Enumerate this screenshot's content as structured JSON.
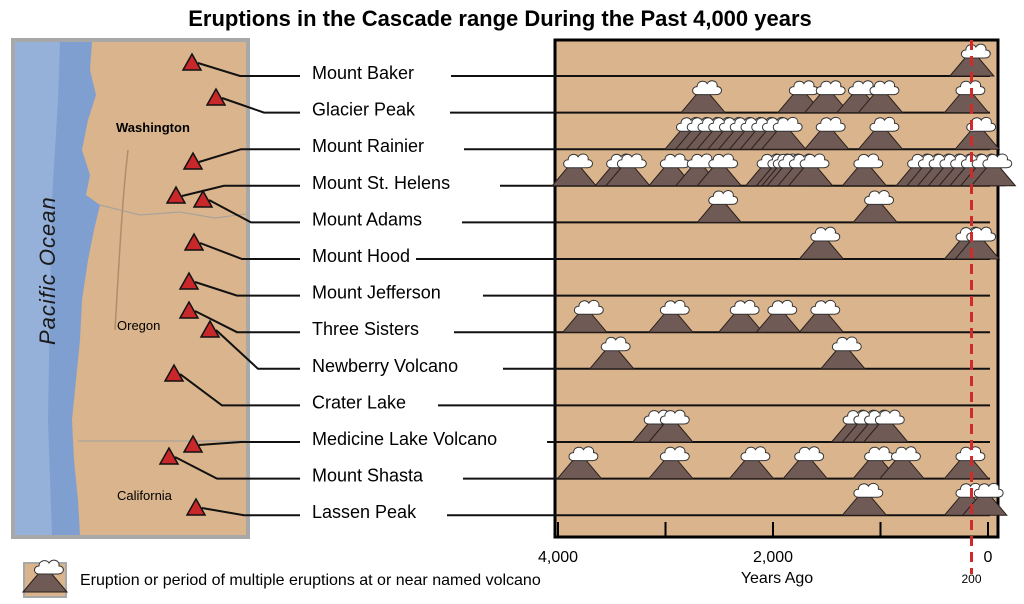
{
  "chart_data": {
    "type": "timeline",
    "title": "Eruptions in the Cascade range During the Past 4,000 years",
    "xlabel": "Years  Ago",
    "x_ticks": [
      4000,
      2000,
      0
    ],
    "x_range": [
      4000,
      0
    ],
    "marker_label": "200",
    "marker_year": 200,
    "legend": "Eruption or period of multiple eruptions at or near named volcano",
    "map_labels": {
      "ocean": "Pacific Ocean",
      "states": [
        "Washington",
        "Oregon",
        "California"
      ]
    },
    "volcanoes": [
      {
        "name": "Mount Baker",
        "eruptions": [
          150
        ]
      },
      {
        "name": "Glacier Peak",
        "eruptions": [
          2650,
          1750,
          1500,
          1200,
          1000,
          200
        ]
      },
      {
        "name": "Mount Rainier",
        "eruptions": [
          2800,
          2700,
          2600,
          2500,
          2400,
          2300,
          2200,
          2100,
          2000,
          1900,
          1500,
          1000,
          100
        ]
      },
      {
        "name": "Mount St. Helens",
        "eruptions": [
          3850,
          3450,
          3350,
          2950,
          2700,
          2500,
          2050,
          1950,
          1900,
          1850,
          1750,
          1650,
          1150,
          650,
          550,
          450,
          350,
          250,
          150,
          50,
          -50
        ]
      },
      {
        "name": "Mount Adams",
        "eruptions": [
          2500,
          1050
        ]
      },
      {
        "name": "Mount Hood",
        "eruptions": [
          1550,
          200,
          100
        ]
      },
      {
        "name": "Mount Jefferson",
        "eruptions": []
      },
      {
        "name": "Three Sisters",
        "eruptions": [
          3750,
          2950,
          2300,
          1950,
          1550
        ]
      },
      {
        "name": "Newberry Volcano",
        "eruptions": [
          3500,
          1350
        ]
      },
      {
        "name": "Crater Lake",
        "eruptions": []
      },
      {
        "name": "Medicine Lake Volcano",
        "eruptions": [
          3100,
          2950,
          1250,
          1150,
          1050,
          950
        ]
      },
      {
        "name": "Mount Shasta",
        "eruptions": [
          3800,
          2950,
          2200,
          1700,
          1050,
          800,
          200
        ]
      },
      {
        "name": "Lassen Peak",
        "eruptions": [
          1150,
          200,
          30
        ]
      }
    ]
  }
}
